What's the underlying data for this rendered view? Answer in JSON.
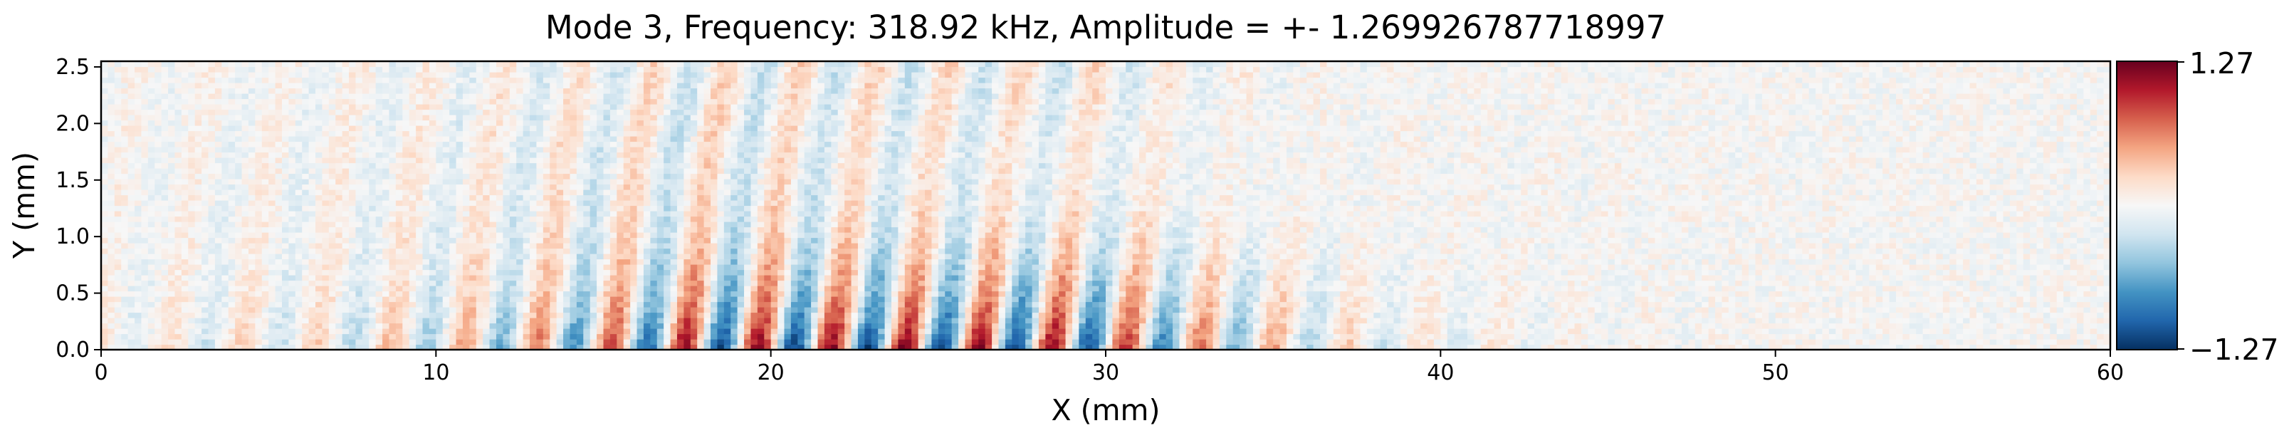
{
  "chart_data": {
    "type": "heatmap",
    "title": "Mode 3, Frequency: 318.92 kHz, Amplitude = +- 1.269926787718997",
    "xlabel": "X (mm)",
    "ylabel": "Y (mm)",
    "xlim": [
      0,
      60
    ],
    "ylim": [
      0,
      2.55
    ],
    "x_ticks": [
      0,
      10,
      20,
      30,
      40,
      50,
      60
    ],
    "x_tick_labels": [
      "0",
      "10",
      "20",
      "30",
      "40",
      "50",
      "60"
    ],
    "y_ticks": [
      0.0,
      0.5,
      1.0,
      1.5,
      2.0,
      2.5
    ],
    "y_tick_labels": [
      "0.0",
      "0.5",
      "1.0",
      "1.5",
      "2.0",
      "2.5"
    ],
    "colormap": "RdBu_r",
    "color_range": [
      -1.269926787718997,
      1.269926787718997
    ],
    "colorbar_tick_labels": [
      "1.27",
      "−1.27"
    ],
    "colors": {
      "positive": "#67001f",
      "neutral": "#f7f7f7",
      "negative": "#053061"
    },
    "field_description": {
      "wavelength_mm": 2.2,
      "surface_peaks_x_mm": [
        2.0,
        4.3,
        6.7,
        9.0,
        11.4,
        13.7,
        16.0,
        18.5,
        20.8,
        23.1,
        25.5,
        27.8,
        30.2,
        32.5,
        34.9,
        37.2
      ],
      "strongest_region_x_mm": [
        12,
        32
      ],
      "max_amplitude": 1.27
    }
  }
}
